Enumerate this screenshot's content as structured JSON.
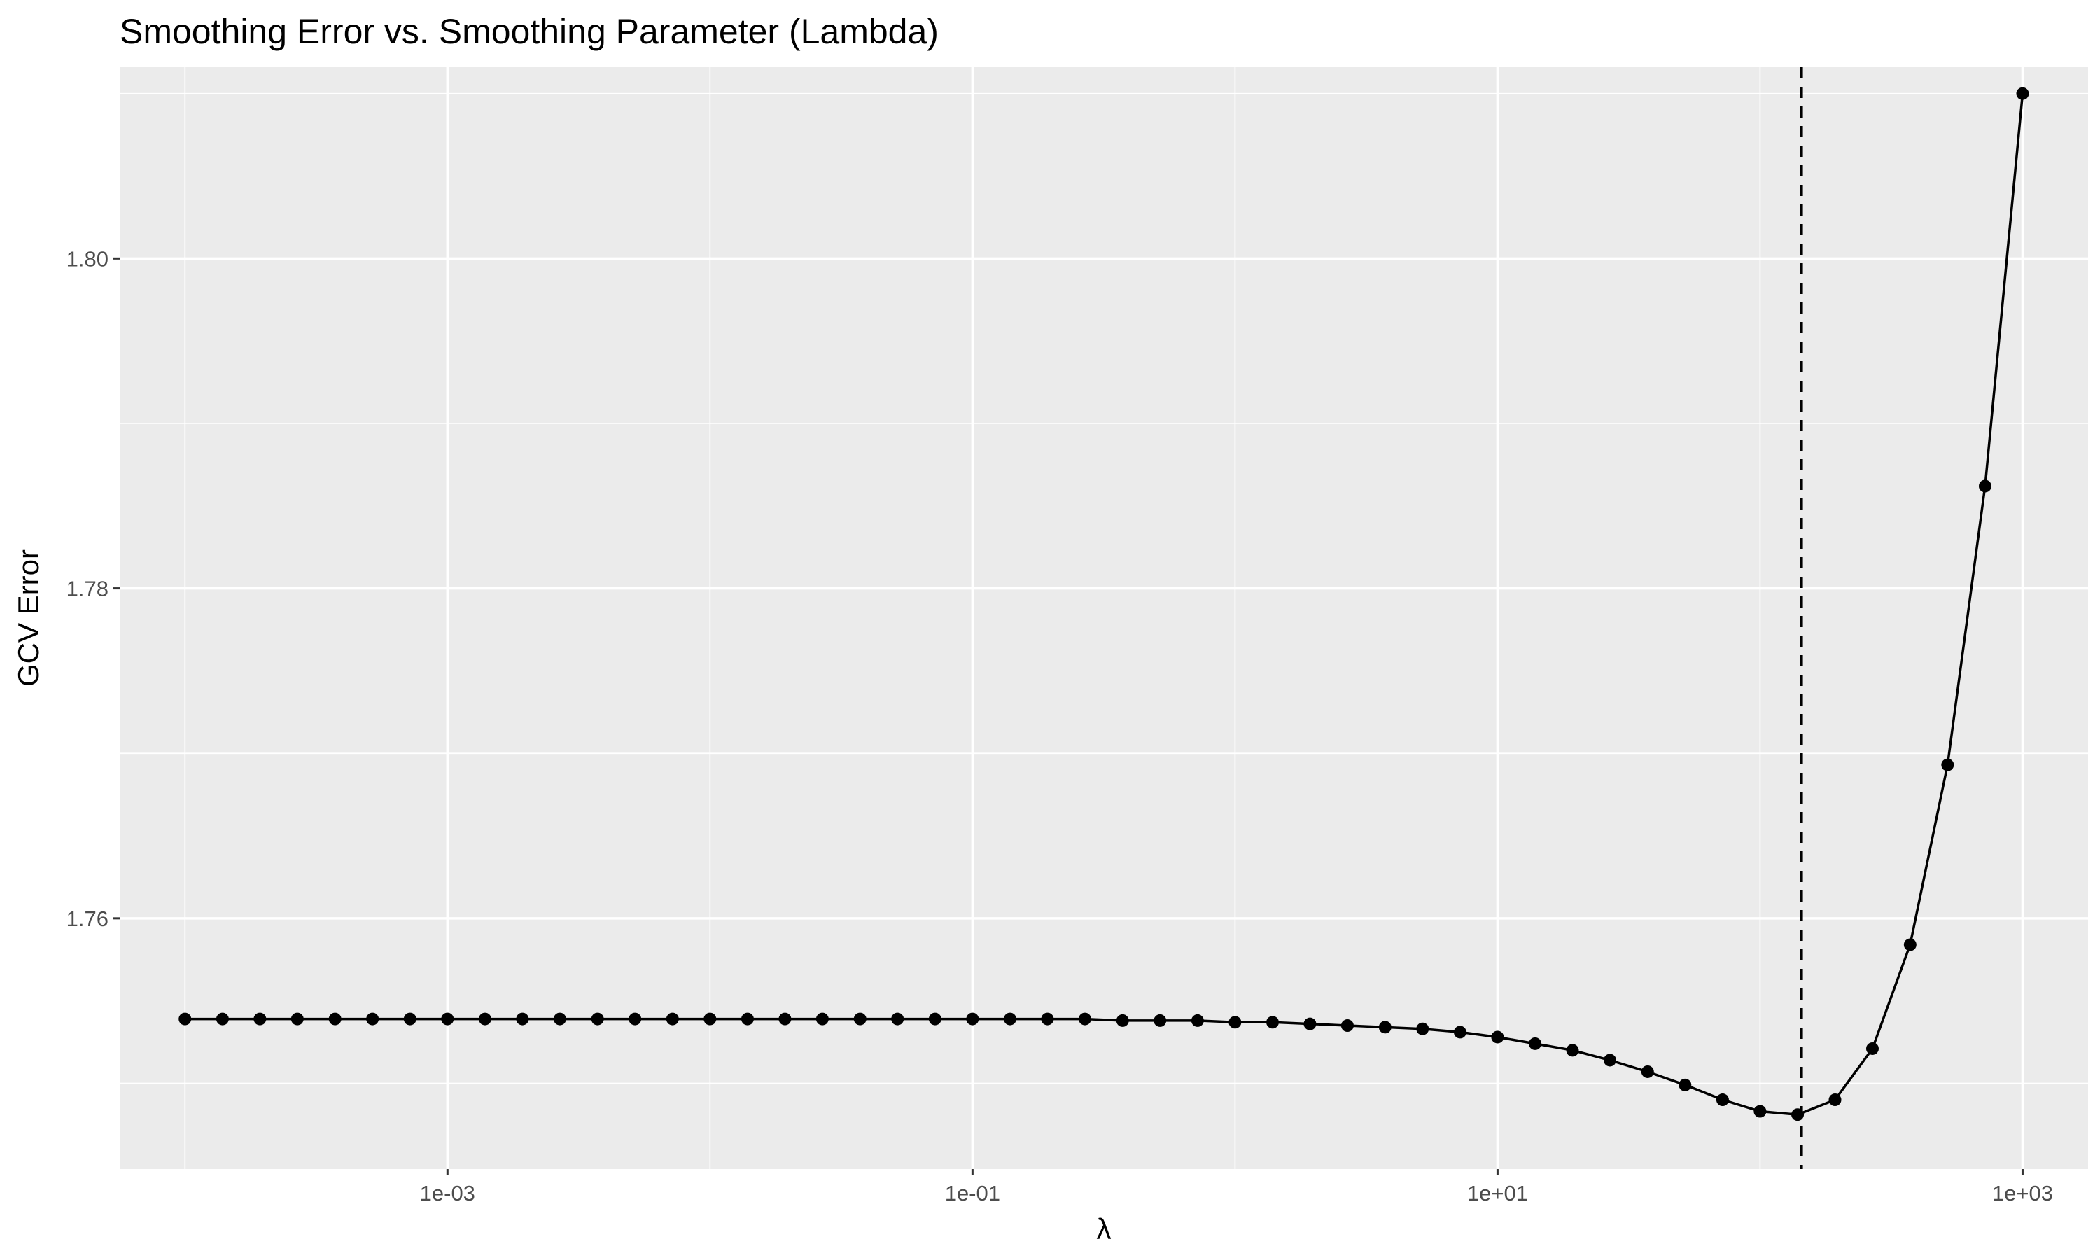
{
  "chart_data": {
    "type": "line",
    "title": "Smoothing Error vs. Smoothing Parameter (Lambda)",
    "xlabel": "λ",
    "ylabel": "GCV Error",
    "x_scale": "log10",
    "xlim": [
      5.64e-05,
      1776
    ],
    "ylim": [
      1.7448,
      1.8116
    ],
    "x_ticks": [
      {
        "value": 0.001,
        "label": "1e-03"
      },
      {
        "value": 0.1,
        "label": "1e-01"
      },
      {
        "value": 10,
        "label": "1e+01"
      },
      {
        "value": 1000,
        "label": "1e+03"
      }
    ],
    "y_ticks": [
      {
        "value": 1.76,
        "label": "1.76"
      },
      {
        "value": 1.78,
        "label": "1.78"
      },
      {
        "value": 1.8,
        "label": "1.80"
      }
    ],
    "grid": true,
    "optimal_lambda_line": 143.8,
    "series": [
      {
        "x": [
          0.0001,
          0.000139,
          0.000193,
          0.000268,
          0.000373,
          0.000518,
          0.00072,
          0.001,
          0.00139,
          0.00193,
          0.00268,
          0.00373,
          0.00518,
          0.0072,
          0.01,
          0.0139,
          0.0193,
          0.0268,
          0.0373,
          0.0518,
          0.072,
          0.1,
          0.139,
          0.193,
          0.268,
          0.373,
          0.518,
          0.72,
          1,
          1.39,
          1.93,
          2.68,
          3.73,
          5.18,
          7.2,
          10,
          13.9,
          19.3,
          26.8,
          37.3,
          51.8,
          72,
          100,
          139,
          193,
          268,
          373,
          518,
          720,
          1000
        ],
        "values": [
          1.7539,
          1.7539,
          1.7539,
          1.7539,
          1.7539,
          1.7539,
          1.7539,
          1.7539,
          1.7539,
          1.7539,
          1.7539,
          1.7539,
          1.7539,
          1.7539,
          1.7539,
          1.7539,
          1.7539,
          1.7539,
          1.7539,
          1.7539,
          1.7539,
          1.7539,
          1.7539,
          1.7539,
          1.7539,
          1.7538,
          1.7538,
          1.7538,
          1.7537,
          1.7537,
          1.7536,
          1.7535,
          1.7534,
          1.7533,
          1.7531,
          1.7528,
          1.7524,
          1.752,
          1.7514,
          1.7507,
          1.7499,
          1.749,
          1.7483,
          1.7481,
          1.749,
          1.7521,
          1.7584,
          1.7693,
          1.7862,
          1.81
        ]
      }
    ]
  }
}
